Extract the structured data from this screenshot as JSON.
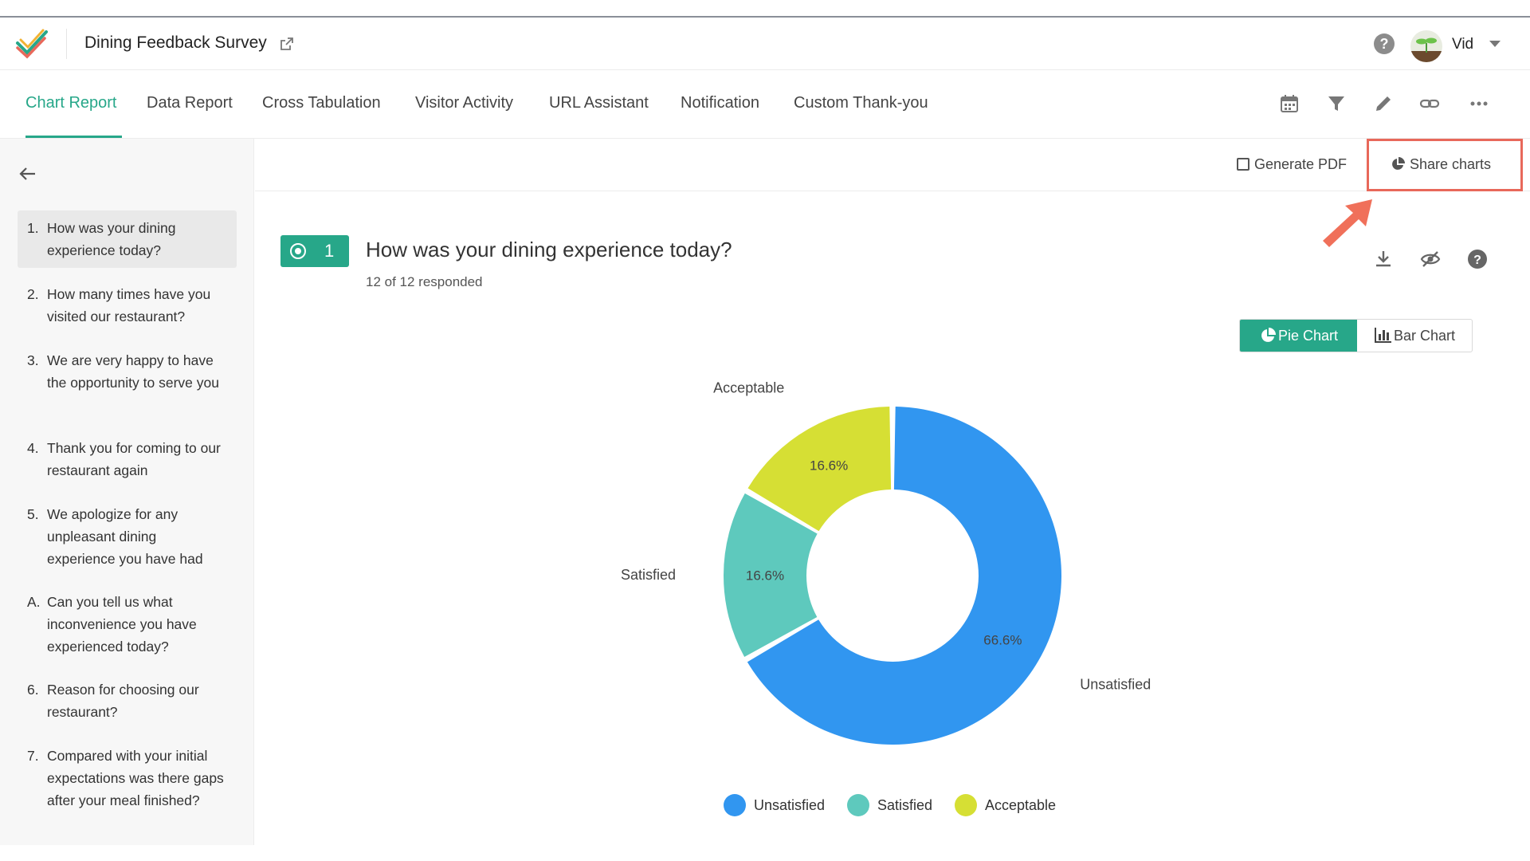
{
  "header": {
    "survey_title": "Dining Feedback Survey",
    "user_name": "Vid"
  },
  "tabs": [
    {
      "label": "Chart Report"
    },
    {
      "label": "Data Report"
    },
    {
      "label": "Cross Tabulation"
    },
    {
      "label": "Visitor Activity"
    },
    {
      "label": "URL Assistant"
    },
    {
      "label": "Notification"
    },
    {
      "label": "Custom Thank-you"
    }
  ],
  "toolbar_icons": [
    "calendar-icon",
    "filter-icon",
    "edit-icon",
    "link-icon",
    "more-icon"
  ],
  "sidebar": {
    "questions": [
      {
        "num": "1.",
        "text": "How was your dining experience today?"
      },
      {
        "num": "2.",
        "text": "How many times have you visited our restaurant?"
      },
      {
        "num": "3.",
        "text": "We are very happy to have the opportunity to serve you"
      },
      {
        "num": "4.",
        "text": "Thank you for coming to our restaurant again"
      },
      {
        "num": "5.",
        "text": "We apologize for any unpleasant dining experience you have had"
      },
      {
        "num": "A.",
        "text": "Can you tell us what inconvenience you have experienced today?"
      },
      {
        "num": "6.",
        "text": "Reason for choosing our restaurant?"
      },
      {
        "num": "7.",
        "text": "Compared with your initial expectations was there gaps after your meal finished?"
      }
    ]
  },
  "actions": {
    "generate_pdf": "Generate PDF",
    "share_charts": "Share charts"
  },
  "question": {
    "number": "1",
    "title": "How was your dining experience today?",
    "responded": "12 of 12 responded"
  },
  "chart_toggle": {
    "pie": "Pie Chart",
    "bar": "Bar Chart"
  },
  "colors": {
    "accent": "#27a789",
    "highlight": "#e8685a"
  },
  "chart_data": {
    "type": "pie",
    "donut": true,
    "categories": [
      "Unsatisfied",
      "Satisfied",
      "Acceptable"
    ],
    "values": [
      66.6,
      16.6,
      16.6
    ],
    "value_labels": [
      "66.6%",
      "16.6%",
      "16.6%"
    ],
    "colors": [
      "#3196f0",
      "#5ec9bd",
      "#d6df34"
    ],
    "legend_position": "bottom"
  }
}
